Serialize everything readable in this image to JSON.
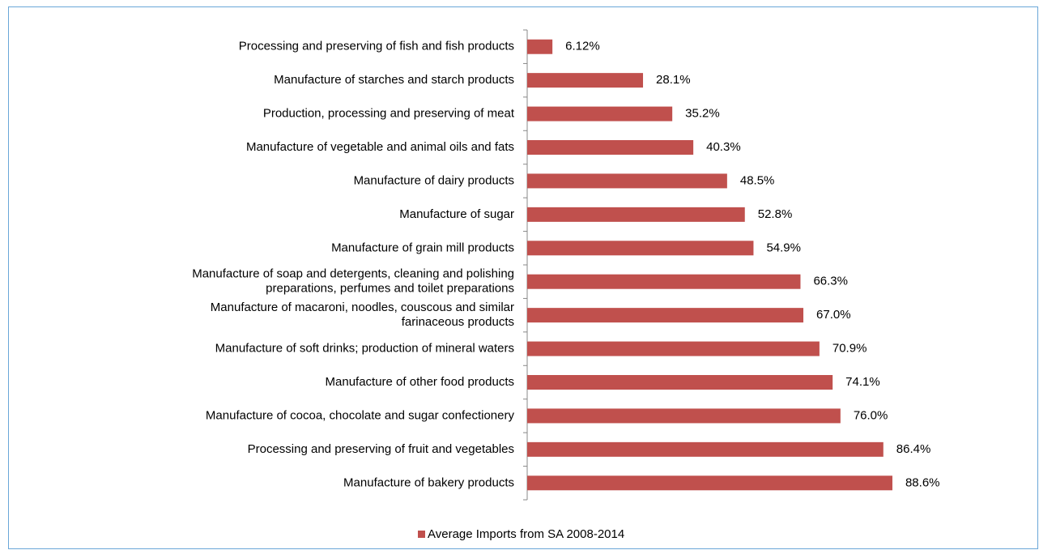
{
  "chart_data": {
    "type": "barh",
    "categories": [
      "Processing and preserving of fish and fish products",
      "Manufacture of starches and starch products",
      "Production, processing and preserving of meat",
      "Manufacture of vegetable and animal oils and fats",
      "Manufacture of dairy products",
      "Manufacture of sugar",
      "Manufacture of grain mill products",
      "Manufacture of soap and detergents, cleaning and polishing\npreparations, perfumes and toilet preparations",
      "Manufacture of macaroni, noodles, couscous and similar\nfarinaceous products",
      "Manufacture of soft drinks; production of mineral waters",
      "Manufacture of other food products",
      "Manufacture of cocoa, chocolate and sugar confectionery",
      "Processing and preserving of fruit and vegetables",
      "Manufacture of bakery products"
    ],
    "series": [
      {
        "name": "Average Imports from SA 2008-2014",
        "color": "#c0504d",
        "values": [
          6.12,
          28.1,
          35.2,
          40.3,
          48.5,
          52.8,
          54.9,
          66.3,
          67.0,
          70.9,
          74.1,
          76.0,
          86.4,
          88.6
        ],
        "value_labels": [
          "6.12%",
          "28.1%",
          "35.2%",
          "40.3%",
          "48.5%",
          "52.8%",
          "54.9%",
          "66.3%",
          "67.0%",
          "70.9%",
          "74.1%",
          "76.0%",
          "86.4%",
          "88.6%"
        ]
      }
    ],
    "xlim": [
      0,
      100
    ],
    "legend": "bottom"
  }
}
